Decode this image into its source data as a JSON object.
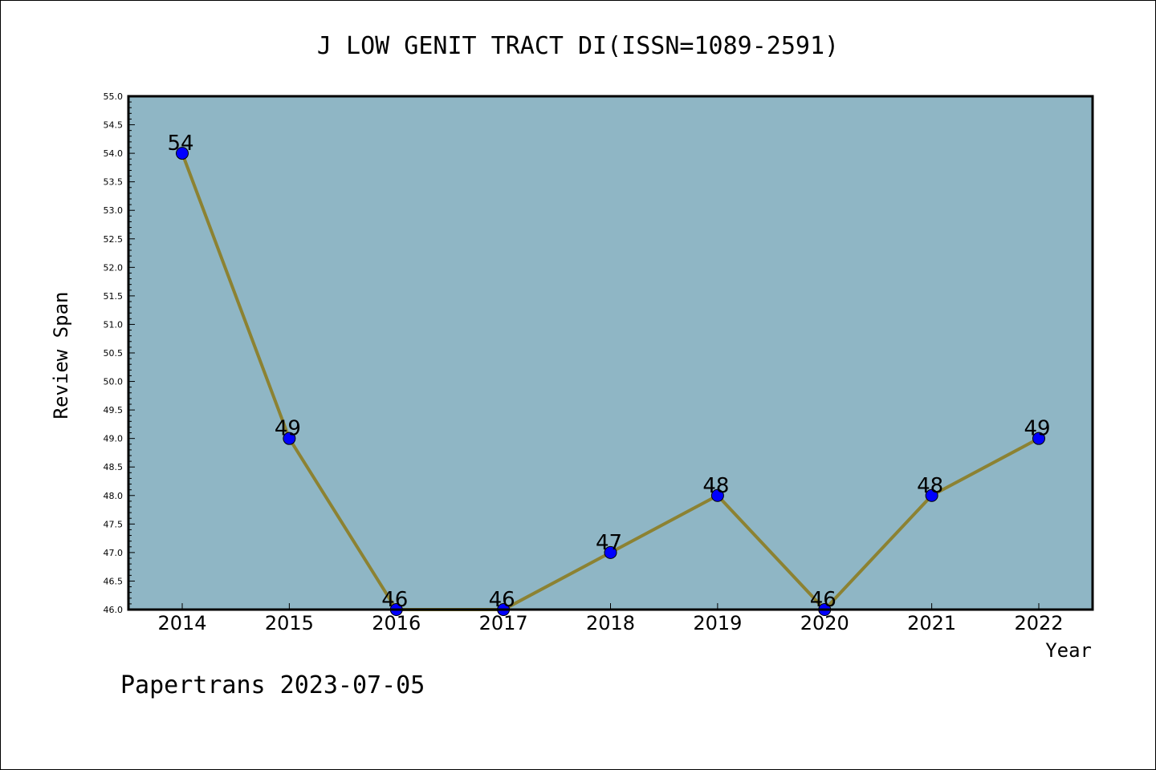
{
  "chart_data": {
    "type": "line",
    "title": "J LOW GENIT TRACT DI(ISSN=1089-2591)",
    "xlabel": "Year",
    "ylabel": "Review Span",
    "categories": [
      "2014",
      "2015",
      "2016",
      "2017",
      "2018",
      "2019",
      "2020",
      "2021",
      "2022"
    ],
    "series": [
      {
        "values": [
          54,
          49,
          46,
          46,
          47,
          48,
          46,
          48,
          49
        ]
      }
    ],
    "data_labels": [
      "54",
      "49",
      "46",
      "46",
      "47",
      "48",
      "46",
      "48",
      "49"
    ],
    "ylim": [
      46.0,
      55.0
    ],
    "yticks": [
      "46.0",
      "46.5",
      "47.0",
      "47.5",
      "48.0",
      "48.5",
      "49.0",
      "49.5",
      "50.0",
      "50.5",
      "51.0",
      "51.5",
      "52.0",
      "52.5",
      "53.0",
      "53.5",
      "54.0",
      "54.5",
      "55.0"
    ],
    "grid": false,
    "legend": "none",
    "colors": {
      "plot_background": "#8fb6c5",
      "line": "#8c8232",
      "marker": "#0000ff",
      "axis": "#000000"
    }
  },
  "footer": {
    "watermark": "Papertrans 2023-07-05"
  }
}
